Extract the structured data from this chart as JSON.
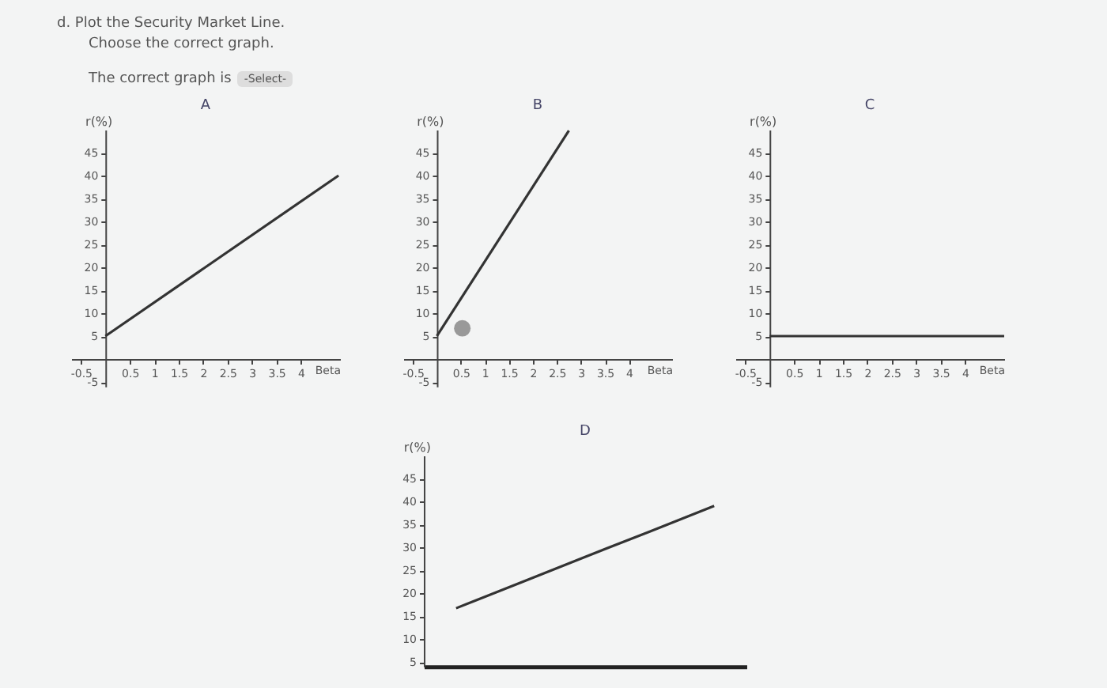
{
  "chart_data": [
    {
      "type": "other",
      "title": "d. Plot the Security Market Line.",
      "annotations": [
        "Choose the correct graph.",
        "The correct graph is",
        "-Select-"
      ]
    },
    {
      "type": "line",
      "title": "A",
      "xlabel": "Beta",
      "ylabel": "r(%)",
      "xlim": [
        -0.7,
        4.8
      ],
      "ylim": [
        -6,
        50
      ],
      "xticks": [
        -0.5,
        0.5,
        1,
        1.5,
        2,
        2.5,
        3,
        3.5,
        4
      ],
      "yticks": [
        -5,
        5,
        10,
        15,
        20,
        25,
        30,
        35,
        40,
        45
      ],
      "grid": false,
      "series": [
        {
          "type": "line",
          "color": "#333333",
          "x": [
            0,
            4.77
          ],
          "values": [
            5,
            40
          ]
        }
      ]
    },
    {
      "type": "line",
      "title": "B",
      "xlabel": "Beta",
      "ylabel": "r(%)",
      "xlim": [
        -0.7,
        4.9
      ],
      "ylim": [
        -6,
        50
      ],
      "xticks": [
        -0.5,
        0.5,
        1,
        1.5,
        2,
        2.5,
        3,
        3.5,
        4
      ],
      "yticks": [
        -5,
        5,
        10,
        15,
        20,
        25,
        30,
        35,
        40,
        45
      ],
      "grid": false,
      "series": [
        {
          "type": "line",
          "color": "#333333",
          "x": [
            0,
            2.75
          ],
          "values": [
            5,
            49.8
          ]
        },
        {
          "type": "scatter",
          "color": "#999999",
          "x": [
            0.53
          ],
          "values": [
            6.7
          ]
        }
      ]
    },
    {
      "type": "line",
      "title": "C",
      "xlabel": "Beta",
      "ylabel": "r(%)",
      "xlim": [
        -0.7,
        4.8
      ],
      "ylim": [
        -6,
        50
      ],
      "xticks": [
        -0.5,
        0.5,
        1,
        1.5,
        2,
        2.5,
        3,
        3.5,
        4
      ],
      "yticks": [
        -5,
        5,
        10,
        15,
        20,
        25,
        30,
        35,
        40,
        45
      ],
      "grid": false,
      "series": [
        {
          "type": "line",
          "color": "#333333",
          "x": [
            0,
            4.8
          ],
          "values": [
            5,
            5
          ]
        }
      ]
    },
    {
      "type": "line",
      "title": "D",
      "ylabel": "r(%)",
      "categories": [
        null,
        null,
        null,
        null,
        null
      ],
      "ylim": [
        4,
        50
      ],
      "yticks": [
        5,
        10,
        15,
        20,
        25,
        30,
        35,
        40,
        45
      ],
      "grid": false,
      "tick_labels": "y",
      "series": [
        {
          "type": "line",
          "color": "#333333",
          "values": [
            16.7,
            22.3,
            27.9,
            33.4,
            39
          ]
        }
      ]
    }
  ]
}
